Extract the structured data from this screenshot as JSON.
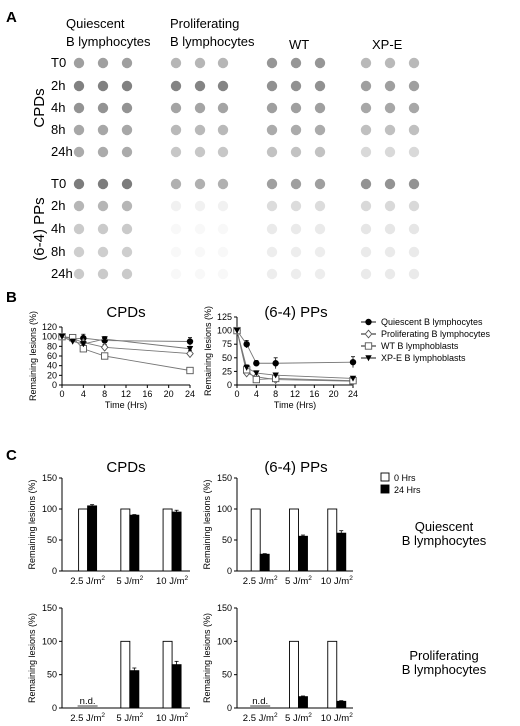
{
  "panel_a": {
    "label": "A",
    "columns": [
      {
        "line1": "Quiescent",
        "line2": "B lymphocytes"
      },
      {
        "line1": "Proliferating",
        "line2": "B lymphocytes"
      },
      {
        "line1": "WT",
        "line2": ""
      },
      {
        "line1": "XP-E",
        "line2": ""
      }
    ],
    "blocks": [
      {
        "name": "CPDs",
        "rows": [
          "T0",
          "2h",
          "4h",
          "8h",
          "24h"
        ],
        "intensity": [
          [
            0.55,
            0.42,
            0.6,
            0.4
          ],
          [
            0.72,
            0.7,
            0.63,
            0.55
          ],
          [
            0.62,
            0.52,
            0.55,
            0.5
          ],
          [
            0.5,
            0.4,
            0.48,
            0.36
          ],
          [
            0.48,
            0.32,
            0.35,
            0.22
          ]
        ]
      },
      {
        "name": "(6-4) PPs",
        "rows": [
          "T0",
          "2h",
          "4h",
          "8h",
          "24h"
        ],
        "intensity": [
          [
            0.75,
            0.45,
            0.55,
            0.62
          ],
          [
            0.42,
            0.08,
            0.2,
            0.22
          ],
          [
            0.3,
            0.04,
            0.12,
            0.14
          ],
          [
            0.28,
            0.04,
            0.1,
            0.12
          ],
          [
            0.3,
            0.04,
            0.1,
            0.12
          ]
        ]
      }
    ]
  },
  "panel_b": {
    "label": "B"
  },
  "panel_c": {
    "label": "C",
    "row_labels": [
      {
        "line1": "Quiescent",
        "line2": "B lymphocytes"
      },
      {
        "line1": "Proliferating",
        "line2": "B lymphocytes"
      }
    ]
  },
  "colors": {
    "dot": "#505050",
    "bar_24h": "#000000",
    "bar_0h": "#ffffff"
  },
  "chart_data": [
    {
      "type": "line",
      "id": "b-cpds",
      "title": "CPDs",
      "xlabel": "Time (Hrs)",
      "ylabel": "Remaining lesions (%)",
      "xlim": [
        0,
        24
      ],
      "ylim": [
        0,
        120
      ],
      "x_ticks": [
        "0",
        "4",
        "8",
        "12",
        "16",
        "20",
        "24"
      ],
      "y_ticks": [
        "0",
        "20",
        "40",
        "60",
        "80",
        "100",
        "120"
      ],
      "series": [
        {
          "name": "Quiescent B lymphocytes",
          "marker": "filled-circle",
          "x": [
            0,
            2,
            4,
            8,
            24
          ],
          "y": [
            100,
            95,
            97,
            92,
            90
          ],
          "err": [
            3,
            6,
            8,
            8,
            8
          ]
        },
        {
          "name": "Proliferating B lymphocytes",
          "marker": "open-diamond",
          "x": [
            0,
            2,
            4,
            8,
            24
          ],
          "y": [
            100,
            96,
            88,
            78,
            65
          ],
          "err": [
            3,
            5,
            8,
            6,
            7
          ]
        },
        {
          "name": "WT B lymphoblasts",
          "marker": "open-square",
          "x": [
            0,
            2,
            4,
            8,
            24
          ],
          "y": [
            100,
            98,
            75,
            60,
            30
          ],
          "err": [
            3,
            4,
            5,
            4,
            3
          ]
        },
        {
          "name": "XP-E B lymphoblasts",
          "marker": "filled-triangle-down",
          "x": [
            0,
            2,
            4,
            8,
            24
          ],
          "y": [
            100,
            90,
            85,
            95,
            75
          ],
          "err": [
            3,
            5,
            6,
            5,
            5
          ]
        }
      ]
    },
    {
      "type": "line",
      "id": "b-64pps",
      "title": "(6-4) PPs",
      "xlabel": "Time (Hrs)",
      "ylabel": "Remaining lesions (%)",
      "xlim": [
        0,
        24
      ],
      "ylim": [
        0,
        120
      ],
      "x_ticks": [
        "0",
        "4",
        "8",
        "12",
        "16",
        "20",
        "24"
      ],
      "y_ticks": [
        "0",
        "25",
        "50",
        "75",
        "100",
        "125"
      ],
      "legend": [
        "Quiescent B lymphocytes",
        "Proliferating B lymphocytes",
        "WT B lymphoblasts",
        "XP-E B lymphoblasts"
      ],
      "series": [
        {
          "name": "Quiescent B lymphocytes",
          "marker": "filled-circle",
          "x": [
            0,
            2,
            4,
            8,
            24
          ],
          "y": [
            100,
            75,
            40,
            40,
            42
          ],
          "err": [
            3,
            7,
            5,
            10,
            10
          ]
        },
        {
          "name": "Proliferating B lymphocytes",
          "marker": "open-diamond",
          "x": [
            0,
            2,
            4,
            8,
            24
          ],
          "y": [
            100,
            22,
            15,
            10,
            7
          ],
          "err": [
            3,
            4,
            3,
            3,
            2
          ]
        },
        {
          "name": "WT B lymphoblasts",
          "marker": "open-square",
          "x": [
            0,
            2,
            4,
            8,
            24
          ],
          "y": [
            100,
            28,
            10,
            12,
            8
          ],
          "err": [
            3,
            4,
            3,
            3,
            2
          ]
        },
        {
          "name": "XP-E B lymphoblasts",
          "marker": "filled-triangle-down",
          "x": [
            0,
            2,
            4,
            8,
            24
          ],
          "y": [
            100,
            32,
            22,
            18,
            12
          ],
          "err": [
            3,
            5,
            4,
            3,
            3
          ]
        }
      ]
    },
    {
      "type": "bar",
      "id": "c-cpds-q",
      "title": "CPDs",
      "ylabel": "Remaining lesions (%)",
      "ylim": [
        0,
        150
      ],
      "y_ticks": [
        "0",
        "50",
        "100",
        "150"
      ],
      "categories": [
        "2.5 J/m",
        "5 J/m",
        "10 J/m"
      ],
      "unit_sup": "2",
      "series": [
        {
          "name": "0 Hrs",
          "values": [
            100,
            100,
            100
          ],
          "err": [
            0,
            0,
            0
          ],
          "nd": [
            false,
            false,
            false
          ]
        },
        {
          "name": "24 Hrs",
          "values": [
            105,
            90,
            95
          ],
          "err": [
            2,
            1,
            3
          ],
          "nd": [
            false,
            false,
            false
          ]
        }
      ]
    },
    {
      "type": "bar",
      "id": "c-64-q",
      "title": "(6-4) PPs",
      "ylabel": "Remaining lesions (%)",
      "ylim": [
        0,
        150
      ],
      "y_ticks": [
        "0",
        "50",
        "100",
        "150"
      ],
      "categories": [
        "2.5 J/m",
        "5 J/m",
        "10 J/m"
      ],
      "unit_sup": "2",
      "legend": [
        "0 Hrs",
        "24 Hrs"
      ],
      "series": [
        {
          "name": "0 Hrs",
          "values": [
            100,
            100,
            100
          ],
          "err": [
            0,
            0,
            0
          ],
          "nd": [
            false,
            false,
            false
          ]
        },
        {
          "name": "24 Hrs",
          "values": [
            27,
            56,
            61
          ],
          "err": [
            1,
            2,
            4
          ],
          "nd": [
            false,
            false,
            false
          ]
        }
      ]
    },
    {
      "type": "bar",
      "id": "c-cpds-p",
      "ylabel": "Remaining lesions (%)",
      "ylim": [
        0,
        150
      ],
      "y_ticks": [
        "0",
        "50",
        "100",
        "150"
      ],
      "categories": [
        "2.5 J/m",
        "5 J/m",
        "10 J/m"
      ],
      "unit_sup": "2",
      "nd_label": "n.d.",
      "series": [
        {
          "name": "0 Hrs",
          "values": [
            0,
            100,
            100
          ],
          "err": [
            0,
            0,
            0
          ],
          "nd": [
            true,
            false,
            false
          ]
        },
        {
          "name": "24 Hrs",
          "values": [
            0,
            56,
            65
          ],
          "err": [
            0,
            4,
            5
          ],
          "nd": [
            true,
            false,
            false
          ]
        }
      ]
    },
    {
      "type": "bar",
      "id": "c-64-p",
      "ylabel": "Remaining lesions (%)",
      "ylim": [
        0,
        150
      ],
      "y_ticks": [
        "0",
        "50",
        "100",
        "150"
      ],
      "categories": [
        "2.5 J/m",
        "5 J/m",
        "10 J/m"
      ],
      "unit_sup": "2",
      "nd_label": "n.d.",
      "series": [
        {
          "name": "0 Hrs",
          "values": [
            0,
            100,
            100
          ],
          "err": [
            0,
            0,
            0
          ],
          "nd": [
            true,
            false,
            false
          ]
        },
        {
          "name": "24 Hrs",
          "values": [
            0,
            17,
            10
          ],
          "err": [
            0,
            1,
            1
          ],
          "nd": [
            true,
            false,
            false
          ]
        }
      ]
    }
  ]
}
